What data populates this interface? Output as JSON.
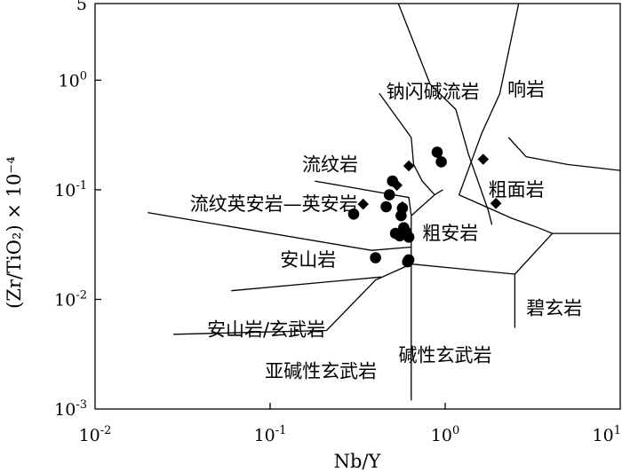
{
  "chart_data": {
    "type": "scatter",
    "title": "",
    "xlabel": "Nb/Y",
    "ylabel": "(Zr/TiO₂) × 10⁻⁴",
    "x_scale": "log",
    "y_scale": "log",
    "xlim": [
      0.01,
      10
    ],
    "ylim": [
      0.001,
      5
    ],
    "x_ticks": [
      {
        "value": 0.01,
        "label": "10-2",
        "base": "10",
        "exp": "-2"
      },
      {
        "value": 0.1,
        "label": "10-1",
        "base": "10",
        "exp": "-1"
      },
      {
        "value": 1,
        "label": "100",
        "base": "10",
        "exp": "0"
      },
      {
        "value": 10,
        "label": "101",
        "base": "10",
        "exp": "1"
      }
    ],
    "y_ticks": [
      {
        "value": 5,
        "label": "5",
        "base": "5",
        "exp": ""
      },
      {
        "value": 1,
        "label": "100",
        "base": "10",
        "exp": "0"
      },
      {
        "value": 0.1,
        "label": "10-1",
        "base": "10",
        "exp": "-1"
      },
      {
        "value": 0.01,
        "label": "10-2",
        "base": "10",
        "exp": "-2"
      },
      {
        "value": 0.001,
        "label": "10-3",
        "base": "10",
        "exp": "-3"
      }
    ],
    "field_labels": [
      {
        "text": "钠闪碱流岩",
        "x": 0.85,
        "y": 0.78
      },
      {
        "text": "响岩",
        "x": 2.9,
        "y": 0.82
      },
      {
        "text": "流纹岩",
        "x": 0.22,
        "y": 0.17
      },
      {
        "text": "粗面岩",
        "x": 2.55,
        "y": 0.1
      },
      {
        "text": "流纹英安岩—英安岩",
        "x": 0.105,
        "y": 0.074
      },
      {
        "text": "粗安岩",
        "x": 1.07,
        "y": 0.04
      },
      {
        "text": "安山岩",
        "x": 0.165,
        "y": 0.023
      },
      {
        "text": "碧玄岩",
        "x": 4.2,
        "y": 0.0083
      },
      {
        "text": "安山岩/玄武岩",
        "x": 0.095,
        "y": 0.0053
      },
      {
        "text": "碱性玄武岩",
        "x": 1.0,
        "y": 0.0031
      },
      {
        "text": "亚碱性玄武岩",
        "x": 0.195,
        "y": 0.0022
      }
    ],
    "boundaries": [
      [
        [
          0.54,
          5
        ],
        [
          0.82,
          0.92
        ],
        [
          1.15,
          0.54
        ],
        [
          1.36,
          0.21
        ],
        [
          1.76,
          0.065
        ],
        [
          1.85,
          0.048
        ]
      ],
      [
        [
          1.2,
          0.09
        ],
        [
          1.62,
          0.33
        ],
        [
          2.05,
          0.75
        ],
        [
          2.63,
          5
        ]
      ],
      [
        [
          2.3,
          0.3
        ],
        [
          2.9,
          0.2
        ],
        [
          5.0,
          0.17
        ],
        [
          10,
          0.15
        ]
      ],
      [
        [
          0.97,
          0.1
        ],
        [
          0.87,
          0.09
        ],
        [
          0.64,
          0.058
        ]
      ],
      [
        [
          1.2,
          0.09
        ],
        [
          2.4,
          0.055
        ],
        [
          3.4,
          0.045
        ],
        [
          4.1,
          0.04
        ],
        [
          10,
          0.04
        ]
      ],
      [
        [
          4.1,
          0.04
        ],
        [
          2.5,
          0.017
        ],
        [
          2.5,
          0.0055
        ]
      ],
      [
        [
          0.18,
          0.12
        ],
        [
          0.62,
          0.085
        ],
        [
          0.64,
          0.058
        ]
      ],
      [
        [
          0.66,
          0.17
        ],
        [
          0.74,
          0.12
        ],
        [
          0.87,
          0.09
        ]
      ],
      [
        [
          0.42,
          0.76
        ],
        [
          0.64,
          0.3
        ],
        [
          0.66,
          0.17
        ]
      ],
      [
        [
          0.02,
          0.062
        ],
        [
          0.38,
          0.028
        ],
        [
          0.64,
          0.03
        ]
      ],
      [
        [
          0.06,
          0.012
        ],
        [
          0.43,
          0.016
        ]
      ],
      [
        [
          0.028,
          0.0048
        ],
        [
          0.21,
          0.0052
        ],
        [
          0.4,
          0.015
        ],
        [
          0.64,
          0.021
        ],
        [
          2.5,
          0.017
        ]
      ],
      [
        [
          0.64,
          0.058
        ],
        [
          0.64,
          0.0012
        ]
      ]
    ],
    "series": [
      {
        "marker": "circle",
        "points": [
          [
            0.3,
            0.06
          ],
          [
            0.4,
            0.024
          ],
          [
            0.46,
            0.07
          ],
          [
            0.48,
            0.09
          ],
          [
            0.5,
            0.12
          ],
          [
            0.52,
            0.04
          ],
          [
            0.55,
            0.038
          ],
          [
            0.56,
            0.058
          ],
          [
            0.57,
            0.068
          ],
          [
            0.58,
            0.045
          ],
          [
            0.6,
            0.041
          ],
          [
            0.62,
            0.037
          ],
          [
            0.61,
            0.022
          ],
          [
            0.62,
            0.023
          ],
          [
            0.9,
            0.22
          ],
          [
            0.95,
            0.18
          ]
        ]
      },
      {
        "marker": "diamond",
        "points": [
          [
            0.34,
            0.074
          ],
          [
            0.53,
            0.11
          ],
          [
            0.57,
            0.07
          ],
          [
            0.62,
            0.165
          ],
          [
            1.65,
            0.19
          ],
          [
            1.95,
            0.075
          ]
        ]
      }
    ]
  }
}
